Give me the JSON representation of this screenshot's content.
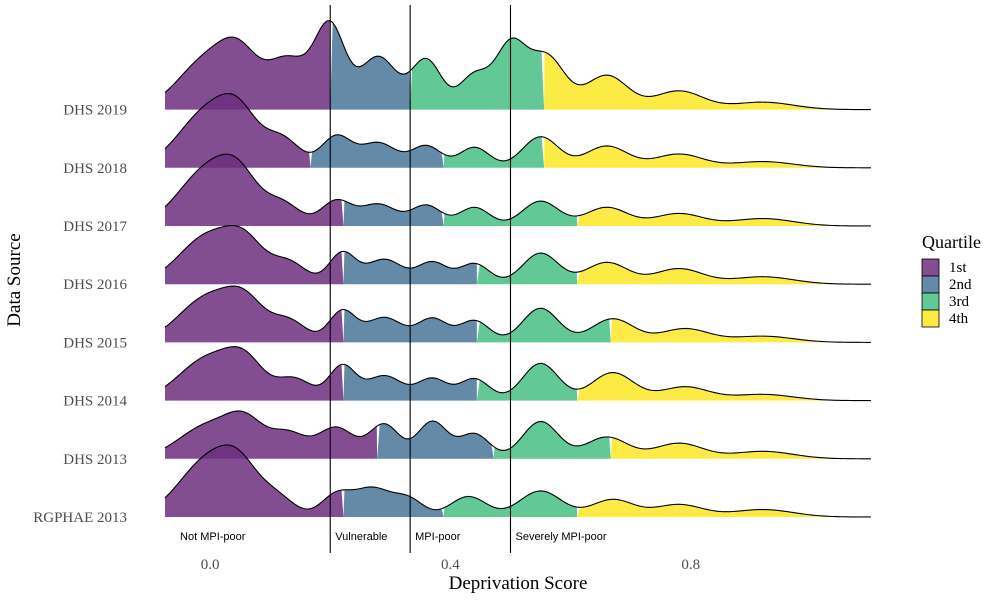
{
  "chart_data": {
    "type": "ridgeline",
    "xlabel": "Deprivation Score",
    "ylabel": "Data Source",
    "xlim": [
      -0.075,
      1.1
    ],
    "x_ticks": [
      0.0,
      0.4,
      0.8
    ],
    "x_tick_labels": [
      "0.0",
      "0.4",
      "0.8"
    ],
    "fill_by": "Quartile",
    "legend": {
      "title": "Quartile",
      "position": "right",
      "entries": [
        {
          "label": "1st",
          "color": "#6c2f7e"
        },
        {
          "label": "2nd",
          "color": "#4a7599"
        },
        {
          "label": "3rd",
          "color": "#47be82"
        },
        {
          "label": "4th",
          "color": "#fde725"
        }
      ]
    },
    "thresholds": [
      {
        "x": 0.0,
        "label": "Not MPI-poor",
        "line": false
      },
      {
        "x": 0.2,
        "label": "Vulnerable",
        "line": true
      },
      {
        "x": 0.333,
        "label": "MPI-poor",
        "line": true
      },
      {
        "x": 0.5,
        "label": "Severely MPI-poor",
        "line": true
      }
    ],
    "series": [
      {
        "name": "RGPHAE 2013",
        "quartile_breaks": [
          0.222,
          0.389,
          0.611
        ],
        "peaks": [
          [
            0.0,
            0.05,
            0.95
          ],
          [
            0.05,
            0.03,
            0.45
          ],
          [
            0.11,
            0.03,
            0.3
          ],
          [
            0.21,
            0.025,
            0.35
          ],
          [
            0.27,
            0.03,
            0.45
          ],
          [
            0.33,
            0.025,
            0.28
          ],
          [
            0.43,
            0.03,
            0.33
          ],
          [
            0.55,
            0.035,
            0.42
          ],
          [
            0.67,
            0.035,
            0.28
          ],
          [
            0.78,
            0.04,
            0.2
          ],
          [
            0.92,
            0.05,
            0.12
          ]
        ]
      },
      {
        "name": "DHS 2013",
        "quartile_breaks": [
          0.278,
          0.472,
          0.667
        ],
        "peaks": [
          [
            0.0,
            0.05,
            0.55
          ],
          [
            0.06,
            0.03,
            0.45
          ],
          [
            0.13,
            0.03,
            0.4
          ],
          [
            0.21,
            0.03,
            0.5
          ],
          [
            0.29,
            0.025,
            0.55
          ],
          [
            0.37,
            0.025,
            0.6
          ],
          [
            0.44,
            0.025,
            0.4
          ],
          [
            0.55,
            0.03,
            0.6
          ],
          [
            0.66,
            0.035,
            0.35
          ],
          [
            0.78,
            0.04,
            0.25
          ],
          [
            0.92,
            0.05,
            0.12
          ]
        ]
      },
      {
        "name": "DHS 2014",
        "quartile_breaks": [
          0.222,
          0.444,
          0.611
        ],
        "peaks": [
          [
            0.0,
            0.05,
            0.7
          ],
          [
            0.06,
            0.03,
            0.45
          ],
          [
            0.14,
            0.03,
            0.35
          ],
          [
            0.22,
            0.022,
            0.55
          ],
          [
            0.29,
            0.03,
            0.4
          ],
          [
            0.37,
            0.025,
            0.35
          ],
          [
            0.44,
            0.025,
            0.35
          ],
          [
            0.55,
            0.03,
            0.6
          ],
          [
            0.67,
            0.035,
            0.45
          ],
          [
            0.79,
            0.04,
            0.22
          ],
          [
            0.92,
            0.05,
            0.1
          ]
        ]
      },
      {
        "name": "DHS 2015",
        "quartile_breaks": [
          0.222,
          0.444,
          0.667
        ],
        "peaks": [
          [
            0.0,
            0.05,
            0.75
          ],
          [
            0.06,
            0.03,
            0.45
          ],
          [
            0.13,
            0.03,
            0.35
          ],
          [
            0.22,
            0.022,
            0.5
          ],
          [
            0.29,
            0.03,
            0.4
          ],
          [
            0.37,
            0.025,
            0.38
          ],
          [
            0.44,
            0.025,
            0.35
          ],
          [
            0.55,
            0.03,
            0.55
          ],
          [
            0.67,
            0.035,
            0.38
          ],
          [
            0.79,
            0.04,
            0.22
          ],
          [
            0.92,
            0.05,
            0.1
          ]
        ]
      },
      {
        "name": "DHS 2016",
        "quartile_breaks": [
          0.222,
          0.444,
          0.611
        ],
        "peaks": [
          [
            0.0,
            0.05,
            0.8
          ],
          [
            0.06,
            0.03,
            0.45
          ],
          [
            0.13,
            0.03,
            0.35
          ],
          [
            0.22,
            0.022,
            0.5
          ],
          [
            0.29,
            0.03,
            0.4
          ],
          [
            0.37,
            0.025,
            0.35
          ],
          [
            0.44,
            0.025,
            0.33
          ],
          [
            0.55,
            0.03,
            0.5
          ],
          [
            0.66,
            0.035,
            0.35
          ],
          [
            0.78,
            0.04,
            0.25
          ],
          [
            0.92,
            0.05,
            0.12
          ]
        ]
      },
      {
        "name": "DHS 2017",
        "quartile_breaks": [
          0.222,
          0.389,
          0.611
        ],
        "peaks": [
          [
            0.0,
            0.05,
            0.95
          ],
          [
            0.05,
            0.03,
            0.45
          ],
          [
            0.12,
            0.03,
            0.35
          ],
          [
            0.21,
            0.025,
            0.4
          ],
          [
            0.28,
            0.03,
            0.35
          ],
          [
            0.36,
            0.025,
            0.33
          ],
          [
            0.44,
            0.025,
            0.3
          ],
          [
            0.55,
            0.03,
            0.4
          ],
          [
            0.66,
            0.035,
            0.3
          ],
          [
            0.78,
            0.04,
            0.2
          ],
          [
            0.92,
            0.05,
            0.12
          ]
        ]
      },
      {
        "name": "DHS 2018",
        "quartile_breaks": [
          0.167,
          0.389,
          0.556
        ],
        "peaks": [
          [
            0.0,
            0.05,
            0.95
          ],
          [
            0.05,
            0.03,
            0.5
          ],
          [
            0.12,
            0.03,
            0.45
          ],
          [
            0.21,
            0.025,
            0.5
          ],
          [
            0.28,
            0.03,
            0.4
          ],
          [
            0.36,
            0.025,
            0.35
          ],
          [
            0.44,
            0.025,
            0.33
          ],
          [
            0.55,
            0.03,
            0.5
          ],
          [
            0.66,
            0.035,
            0.35
          ],
          [
            0.78,
            0.04,
            0.22
          ],
          [
            0.92,
            0.05,
            0.1
          ]
        ]
      },
      {
        "name": "DHS 2019",
        "quartile_breaks": [
          0.2,
          0.333,
          0.556
        ],
        "peaks": [
          [
            0.0,
            0.05,
            0.85
          ],
          [
            0.05,
            0.03,
            0.55
          ],
          [
            0.13,
            0.035,
            0.8
          ],
          [
            0.2,
            0.025,
            1.3
          ],
          [
            0.28,
            0.03,
            0.85
          ],
          [
            0.36,
            0.025,
            0.8
          ],
          [
            0.44,
            0.025,
            0.55
          ],
          [
            0.5,
            0.025,
            1.0
          ],
          [
            0.56,
            0.03,
            0.85
          ],
          [
            0.66,
            0.035,
            0.55
          ],
          [
            0.78,
            0.04,
            0.3
          ],
          [
            0.92,
            0.05,
            0.12
          ]
        ]
      }
    ]
  }
}
